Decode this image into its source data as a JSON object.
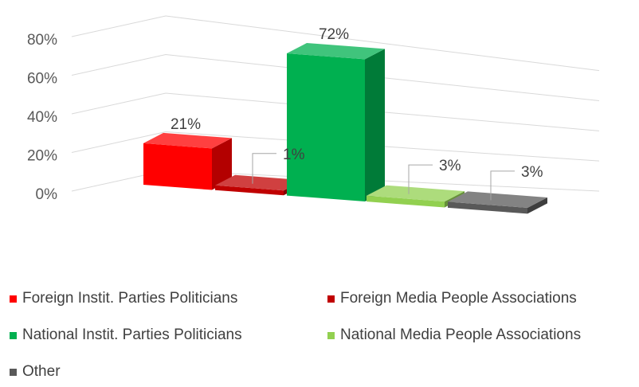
{
  "chart_data": {
    "type": "bar",
    "style": "3d",
    "categories": [
      "Foreign Instit. Parties Politicians",
      "Foreign Media People Associations",
      "National Instit. Parties Politicians",
      "National Media People Associations",
      "Other"
    ],
    "values": [
      21,
      1,
      72,
      3,
      3
    ],
    "value_labels": [
      "21%",
      "1%",
      "72%",
      "3%",
      "3%"
    ],
    "y_tick_labels": [
      "0%",
      "20%",
      "40%",
      "60%",
      "80%"
    ],
    "ylim": [
      0,
      80
    ],
    "grid": true,
    "legend_position": "bottom",
    "colors": [
      "#ff0000",
      "#c00000",
      "#00b050",
      "#92d050",
      "#595959"
    ]
  },
  "legend": [
    {
      "label": "Foreign Instit. Parties Politicians",
      "color": "#ff0000"
    },
    {
      "label": "Foreign Media People Associations",
      "color": "#c00000"
    },
    {
      "label": "National Instit. Parties Politicians",
      "color": "#00b050"
    },
    {
      "label": "National Media People Associations",
      "color": "#92d050"
    },
    {
      "label": "Other",
      "color": "#595959"
    }
  ]
}
